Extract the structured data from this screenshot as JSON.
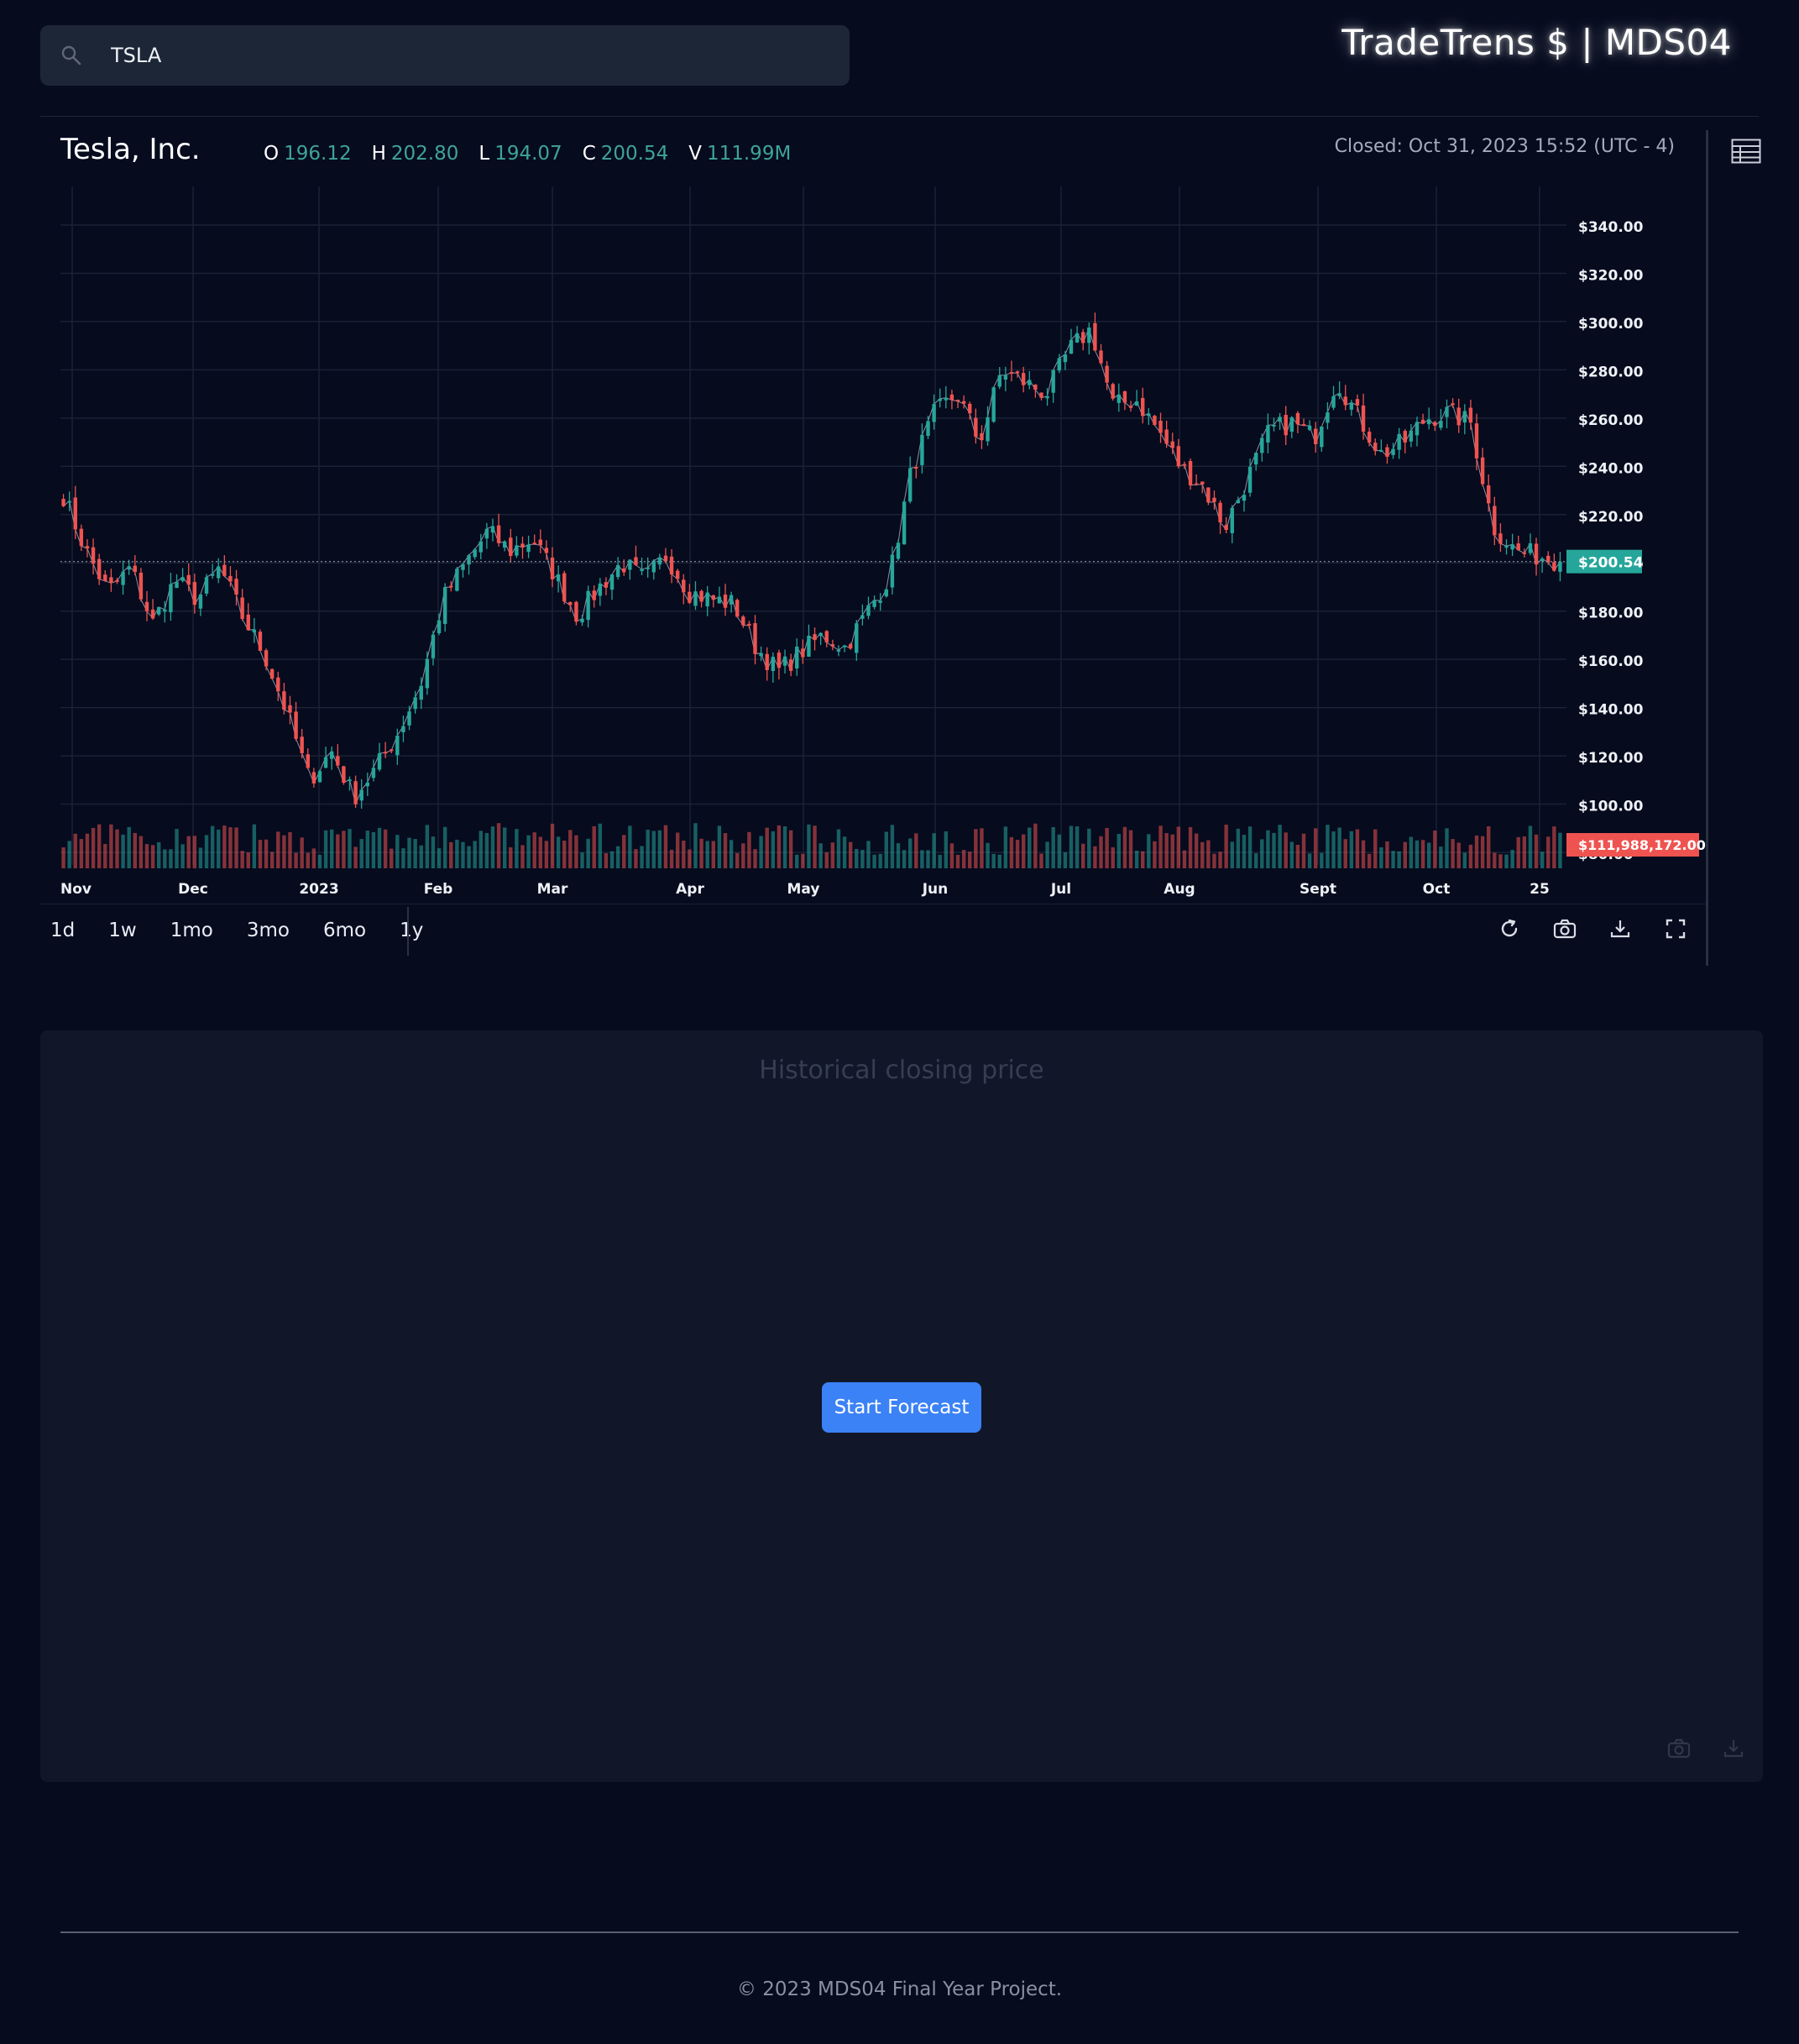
{
  "search": {
    "value": "TSLA",
    "icon": "search-icon"
  },
  "brand": "TradeTrens $ | MDS04",
  "stock": {
    "name": "Tesla, Inc.",
    "ohlc": [
      {
        "k": "O",
        "v": "196.12"
      },
      {
        "k": "H",
        "v": "202.80"
      },
      {
        "k": "L",
        "v": "194.07"
      },
      {
        "k": "C",
        "v": "200.54"
      },
      {
        "k": "V",
        "v": "111.99M"
      }
    ],
    "closed": "Closed: Oct 31, 2023 15:52 (UTC - 4)"
  },
  "colors": {
    "up": "#26a69a",
    "down": "#ef5350",
    "background": "#060b1e",
    "accent": "#3b82f6"
  },
  "ranges": [
    "1d",
    "1w",
    "1mo",
    "3mo",
    "6mo",
    "1y"
  ],
  "tools": [
    "refresh-icon",
    "camera-icon",
    "download-icon",
    "fullscreen-icon"
  ],
  "chart_data": {
    "type": "candlestick",
    "y_ticks": [
      "$340.00",
      "$320.00",
      "$300.00",
      "$280.00",
      "$260.00",
      "$240.00",
      "$220.00",
      "$200.00",
      "$180.00",
      "$160.00",
      "$140.00",
      "$120.00",
      "$100.00",
      "$80.00"
    ],
    "ylim": [
      80,
      345
    ],
    "x_ticks": [
      "Nov",
      "Dec",
      "2023",
      "Feb",
      "Mar",
      "Apr",
      "May",
      "Jun",
      "Jul",
      "Aug",
      "Sept",
      "Oct",
      "25"
    ],
    "last_price_label": "$200.54",
    "last_volume_label": "$111,988,172.00",
    "last_price": 200.54,
    "close_path": [
      228,
      205,
      188,
      198,
      175,
      193,
      185,
      198,
      178,
      162,
      138,
      110,
      122,
      103,
      115,
      130,
      150,
      185,
      200,
      213,
      205,
      210,
      195,
      178,
      190,
      200,
      193,
      203,
      188,
      185,
      183,
      165,
      155,
      163,
      170,
      165,
      180,
      195,
      240,
      262,
      270,
      250,
      280,
      275,
      270,
      288,
      297,
      265,
      268,
      255,
      240,
      232,
      215,
      235,
      255,
      258,
      252,
      276,
      260,
      245,
      250,
      260,
      262,
      258,
      215,
      205,
      203,
      200.54
    ],
    "grid": true
  },
  "forecast": {
    "title": "Historical closing price",
    "button": "Start Forecast"
  },
  "footer": "© 2023 MDS04 Final Year Project."
}
